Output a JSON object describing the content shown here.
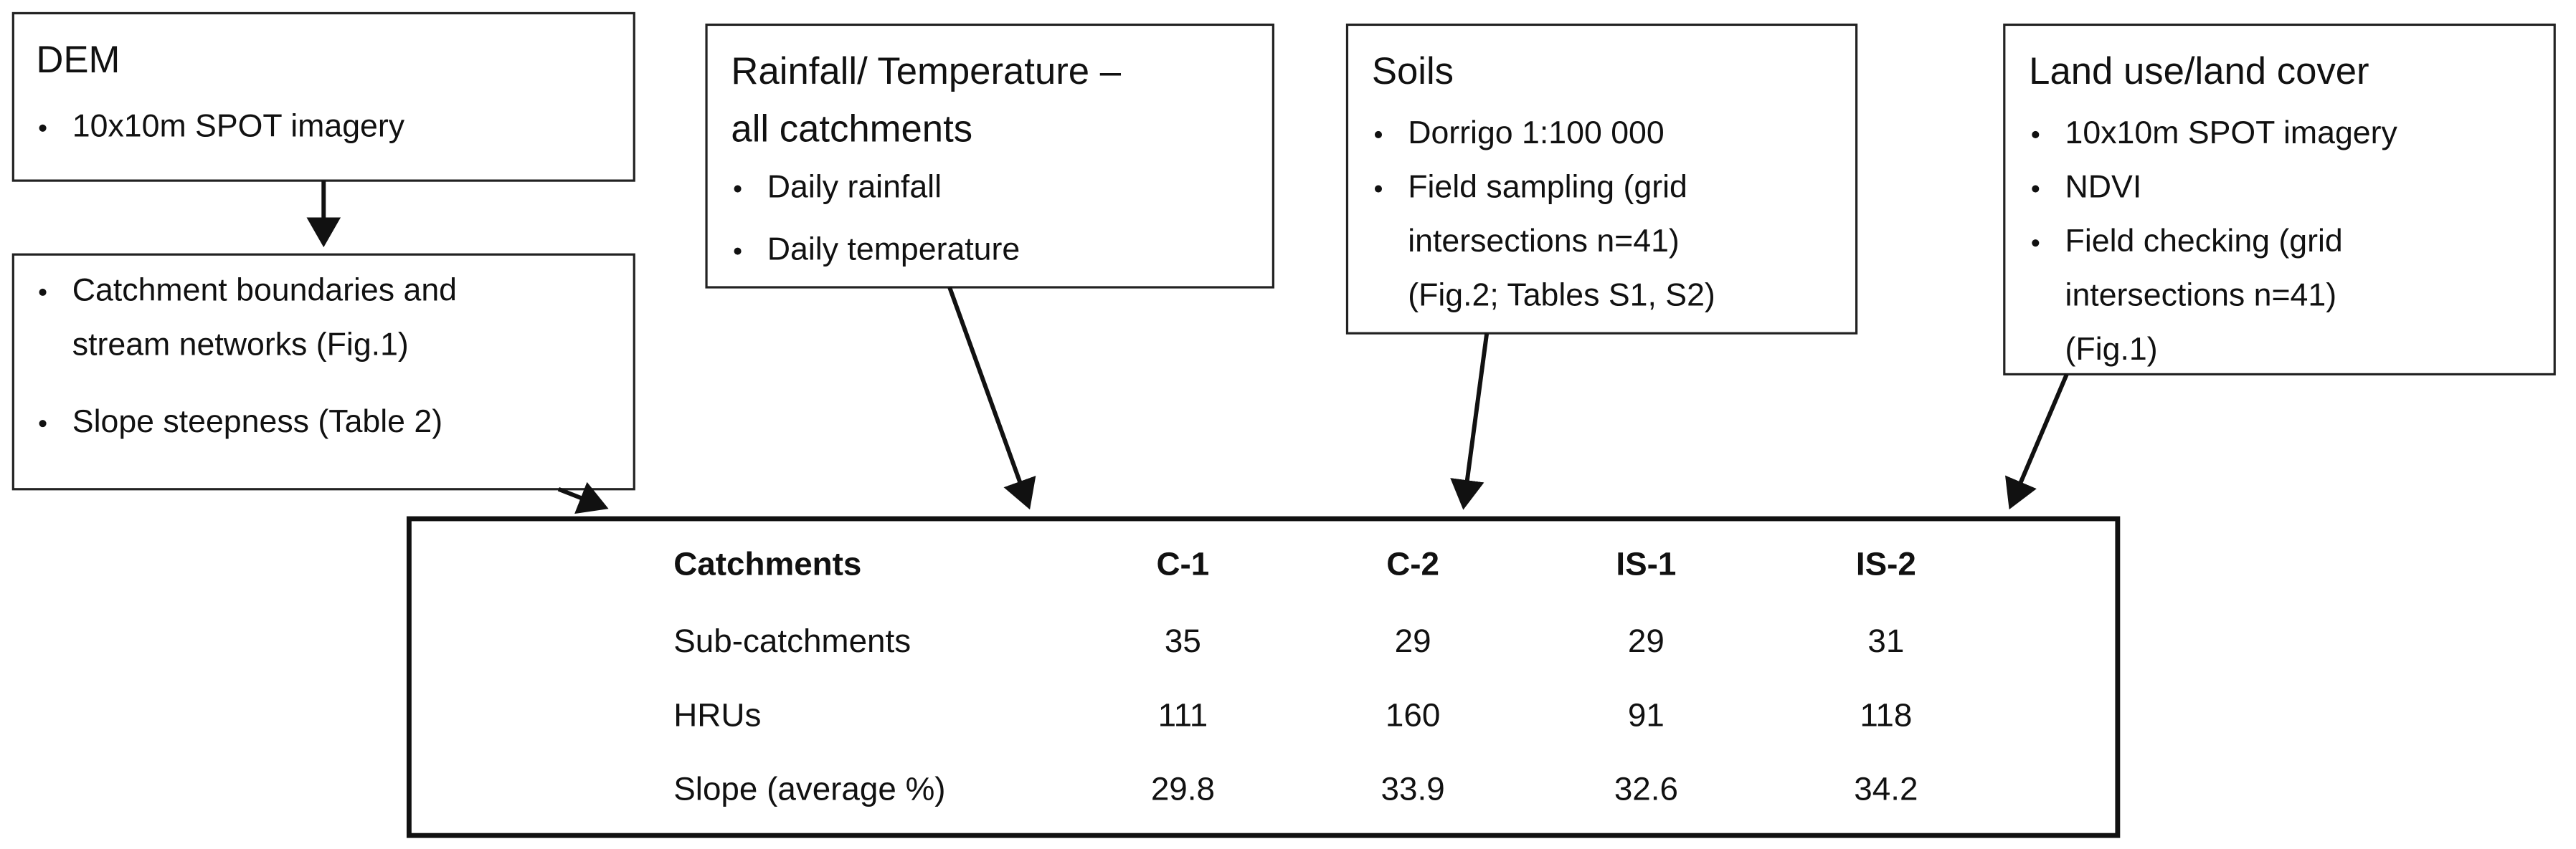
{
  "dem": {
    "title": "DEM",
    "bullets": [
      [
        "10x10m SPOT imagery"
      ]
    ]
  },
  "dem_outputs": {
    "bullets": [
      [
        "Catchment boundaries and",
        "stream networks (Fig.1)"
      ],
      [
        "Slope steepness  (Table 2)"
      ]
    ]
  },
  "climate": {
    "title": [
      "Rainfall/ Temperature –",
      "all catchments"
    ],
    "bullets": [
      [
        "Daily rainfall"
      ],
      [
        "Daily temperature"
      ]
    ]
  },
  "soils": {
    "title": "Soils",
    "bullets": [
      [
        "Dorrigo 1:100 000"
      ],
      [
        "Field sampling (grid",
        "intersections n=41)",
        "(Fig.2; Tables S1, S2)"
      ]
    ]
  },
  "land_use": {
    "title": "Land use/land cover",
    "bullets": [
      [
        "10x10m SPOT imagery"
      ],
      [
        "NDVI"
      ],
      [
        "Field checking (grid",
        "intersections n=41)",
        "(Fig.1)"
      ]
    ]
  },
  "table": {
    "header": [
      "Catchments",
      "C-1",
      "C-2",
      "IS-1",
      "IS-2"
    ],
    "rows": [
      [
        "Sub-catchments",
        "35",
        "29",
        "29",
        "31"
      ],
      [
        "HRUs",
        "111",
        "160",
        "91",
        "118"
      ],
      [
        "Slope (average %)",
        "29.8",
        "33.9",
        "32.6",
        "34.2"
      ]
    ]
  }
}
